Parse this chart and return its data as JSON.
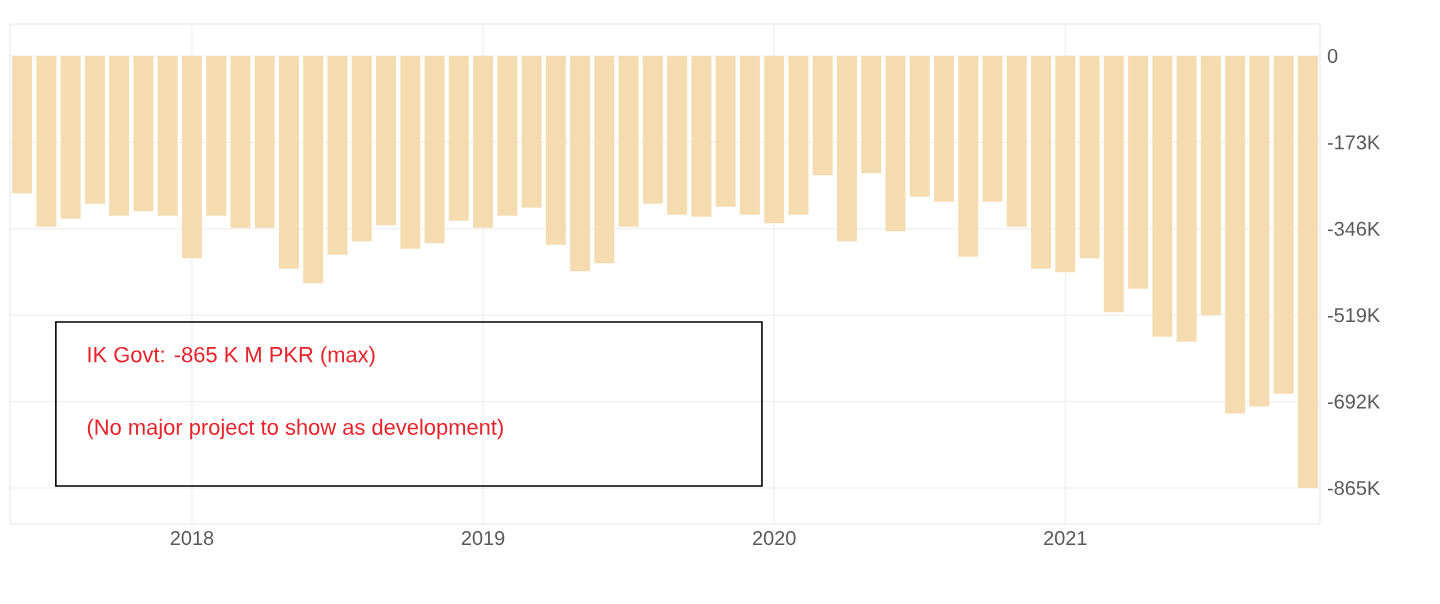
{
  "chart_data": {
    "type": "bar",
    "color": "#f5dcb0",
    "categories": [
      null,
      null,
      null,
      null,
      null,
      null,
      null,
      "2018",
      null,
      null,
      null,
      null,
      null,
      null,
      null,
      null,
      null,
      null,
      null,
      "2019",
      null,
      null,
      null,
      null,
      null,
      null,
      null,
      null,
      null,
      null,
      null,
      "2020",
      null,
      null,
      null,
      null,
      null,
      null,
      null,
      null,
      null,
      null,
      null,
      "2021",
      null,
      null,
      null,
      null,
      null,
      null,
      null,
      null,
      null,
      null
    ],
    "values": [
      -275000,
      -342000,
      -326000,
      -296000,
      -320000,
      -311000,
      -320000,
      -405000,
      -320000,
      -344000,
      -344000,
      -426000,
      -455000,
      -398000,
      -371000,
      -339000,
      -386000,
      -375000,
      -330000,
      -344000,
      -320000,
      -304000,
      -378000,
      -431000,
      -415000,
      -342000,
      -296000,
      -318000,
      -322000,
      -302000,
      -318000,
      -335000,
      -318000,
      -239000,
      -371000,
      -235000,
      -351000,
      -282000,
      -292000,
      -402000,
      -292000,
      -342000,
      -426000,
      -433000,
      -405000,
      -513000,
      -466000,
      -562000,
      -572000,
      -519000,
      -716000,
      -702000,
      -676000,
      -865000
    ],
    "ylim": [
      -937000,
      64000
    ],
    "yticks": [
      {
        "value": 0,
        "label": "0"
      },
      {
        "value": -173000,
        "label": "-173K"
      },
      {
        "value": -346000,
        "label": "-346K"
      },
      {
        "value": -519000,
        "label": "-519K"
      },
      {
        "value": -692000,
        "label": "-692K"
      },
      {
        "value": -865000,
        "label": "-865K"
      }
    ],
    "grid": true,
    "annotations": [
      "IK Govt: -865 K M PKR (max)",
      "(No major project to show as development)"
    ]
  }
}
